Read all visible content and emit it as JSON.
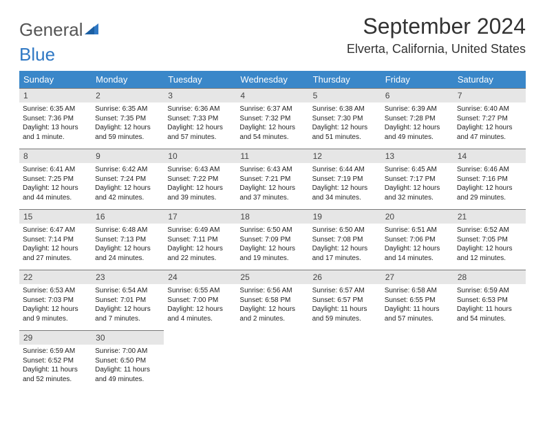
{
  "logo": {
    "word1": "General",
    "word2": "Blue"
  },
  "title": "September 2024",
  "location": "Elverta, California, United States",
  "colors": {
    "header_bg": "#3a87c9",
    "header_fg": "#ffffff",
    "daynum_bg": "#e6e6e6",
    "daynum_border": "#777777",
    "logo_blue": "#2f78c4",
    "page_bg": "#ffffff"
  },
  "weekdays": [
    "Sunday",
    "Monday",
    "Tuesday",
    "Wednesday",
    "Thursday",
    "Friday",
    "Saturday"
  ],
  "days": [
    {
      "n": "1",
      "sr": "Sunrise: 6:35 AM",
      "ss": "Sunset: 7:36 PM",
      "dl": "Daylight: 13 hours and 1 minute."
    },
    {
      "n": "2",
      "sr": "Sunrise: 6:35 AM",
      "ss": "Sunset: 7:35 PM",
      "dl": "Daylight: 12 hours and 59 minutes."
    },
    {
      "n": "3",
      "sr": "Sunrise: 6:36 AM",
      "ss": "Sunset: 7:33 PM",
      "dl": "Daylight: 12 hours and 57 minutes."
    },
    {
      "n": "4",
      "sr": "Sunrise: 6:37 AM",
      "ss": "Sunset: 7:32 PM",
      "dl": "Daylight: 12 hours and 54 minutes."
    },
    {
      "n": "5",
      "sr": "Sunrise: 6:38 AM",
      "ss": "Sunset: 7:30 PM",
      "dl": "Daylight: 12 hours and 51 minutes."
    },
    {
      "n": "6",
      "sr": "Sunrise: 6:39 AM",
      "ss": "Sunset: 7:28 PM",
      "dl": "Daylight: 12 hours and 49 minutes."
    },
    {
      "n": "7",
      "sr": "Sunrise: 6:40 AM",
      "ss": "Sunset: 7:27 PM",
      "dl": "Daylight: 12 hours and 47 minutes."
    },
    {
      "n": "8",
      "sr": "Sunrise: 6:41 AM",
      "ss": "Sunset: 7:25 PM",
      "dl": "Daylight: 12 hours and 44 minutes."
    },
    {
      "n": "9",
      "sr": "Sunrise: 6:42 AM",
      "ss": "Sunset: 7:24 PM",
      "dl": "Daylight: 12 hours and 42 minutes."
    },
    {
      "n": "10",
      "sr": "Sunrise: 6:43 AM",
      "ss": "Sunset: 7:22 PM",
      "dl": "Daylight: 12 hours and 39 minutes."
    },
    {
      "n": "11",
      "sr": "Sunrise: 6:43 AM",
      "ss": "Sunset: 7:21 PM",
      "dl": "Daylight: 12 hours and 37 minutes."
    },
    {
      "n": "12",
      "sr": "Sunrise: 6:44 AM",
      "ss": "Sunset: 7:19 PM",
      "dl": "Daylight: 12 hours and 34 minutes."
    },
    {
      "n": "13",
      "sr": "Sunrise: 6:45 AM",
      "ss": "Sunset: 7:17 PM",
      "dl": "Daylight: 12 hours and 32 minutes."
    },
    {
      "n": "14",
      "sr": "Sunrise: 6:46 AM",
      "ss": "Sunset: 7:16 PM",
      "dl": "Daylight: 12 hours and 29 minutes."
    },
    {
      "n": "15",
      "sr": "Sunrise: 6:47 AM",
      "ss": "Sunset: 7:14 PM",
      "dl": "Daylight: 12 hours and 27 minutes."
    },
    {
      "n": "16",
      "sr": "Sunrise: 6:48 AM",
      "ss": "Sunset: 7:13 PM",
      "dl": "Daylight: 12 hours and 24 minutes."
    },
    {
      "n": "17",
      "sr": "Sunrise: 6:49 AM",
      "ss": "Sunset: 7:11 PM",
      "dl": "Daylight: 12 hours and 22 minutes."
    },
    {
      "n": "18",
      "sr": "Sunrise: 6:50 AM",
      "ss": "Sunset: 7:09 PM",
      "dl": "Daylight: 12 hours and 19 minutes."
    },
    {
      "n": "19",
      "sr": "Sunrise: 6:50 AM",
      "ss": "Sunset: 7:08 PM",
      "dl": "Daylight: 12 hours and 17 minutes."
    },
    {
      "n": "20",
      "sr": "Sunrise: 6:51 AM",
      "ss": "Sunset: 7:06 PM",
      "dl": "Daylight: 12 hours and 14 minutes."
    },
    {
      "n": "21",
      "sr": "Sunrise: 6:52 AM",
      "ss": "Sunset: 7:05 PM",
      "dl": "Daylight: 12 hours and 12 minutes."
    },
    {
      "n": "22",
      "sr": "Sunrise: 6:53 AM",
      "ss": "Sunset: 7:03 PM",
      "dl": "Daylight: 12 hours and 9 minutes."
    },
    {
      "n": "23",
      "sr": "Sunrise: 6:54 AM",
      "ss": "Sunset: 7:01 PM",
      "dl": "Daylight: 12 hours and 7 minutes."
    },
    {
      "n": "24",
      "sr": "Sunrise: 6:55 AM",
      "ss": "Sunset: 7:00 PM",
      "dl": "Daylight: 12 hours and 4 minutes."
    },
    {
      "n": "25",
      "sr": "Sunrise: 6:56 AM",
      "ss": "Sunset: 6:58 PM",
      "dl": "Daylight: 12 hours and 2 minutes."
    },
    {
      "n": "26",
      "sr": "Sunrise: 6:57 AM",
      "ss": "Sunset: 6:57 PM",
      "dl": "Daylight: 11 hours and 59 minutes."
    },
    {
      "n": "27",
      "sr": "Sunrise: 6:58 AM",
      "ss": "Sunset: 6:55 PM",
      "dl": "Daylight: 11 hours and 57 minutes."
    },
    {
      "n": "28",
      "sr": "Sunrise: 6:59 AM",
      "ss": "Sunset: 6:53 PM",
      "dl": "Daylight: 11 hours and 54 minutes."
    },
    {
      "n": "29",
      "sr": "Sunrise: 6:59 AM",
      "ss": "Sunset: 6:52 PM",
      "dl": "Daylight: 11 hours and 52 minutes."
    },
    {
      "n": "30",
      "sr": "Sunrise: 7:00 AM",
      "ss": "Sunset: 6:50 PM",
      "dl": "Daylight: 11 hours and 49 minutes."
    }
  ]
}
